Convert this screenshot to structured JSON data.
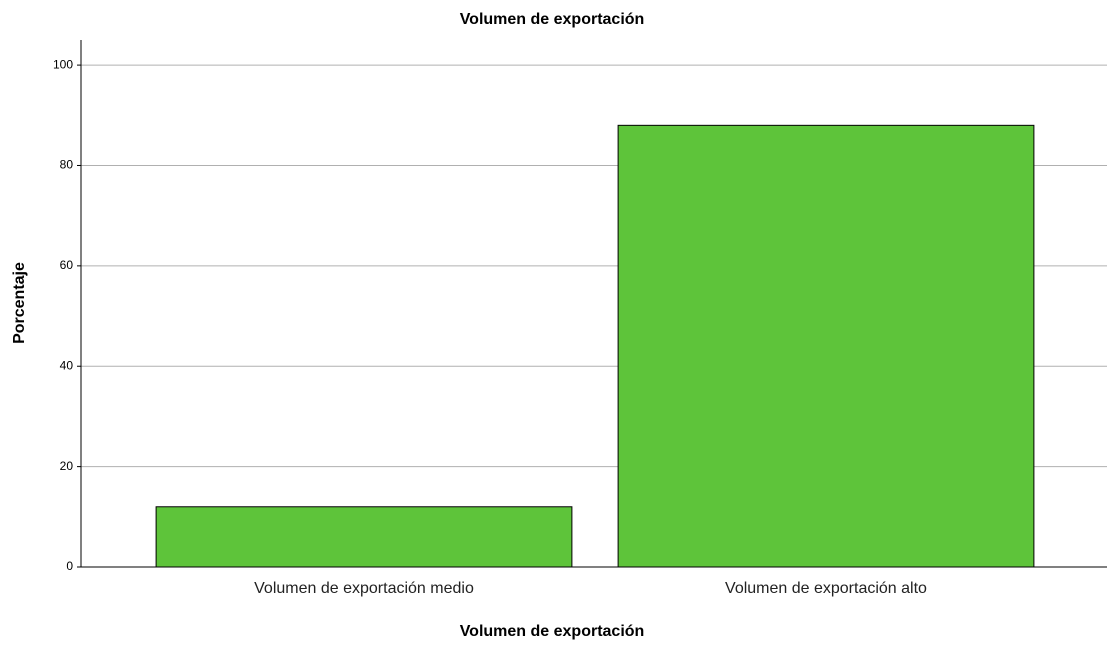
{
  "chart_data": {
    "type": "bar",
    "title": "Volumen de exportación",
    "x_label": "Volumen de exportación",
    "y_label": "Porcentaje",
    "categories": [
      "Volumen de exportación medio",
      "Volumen de exportación alto"
    ],
    "values": [
      12,
      88
    ],
    "color": "#5ec43a",
    "ylim": [
      0,
      105
    ],
    "yticks": [
      0,
      20,
      40,
      60,
      80,
      100
    ],
    "grid": true
  }
}
